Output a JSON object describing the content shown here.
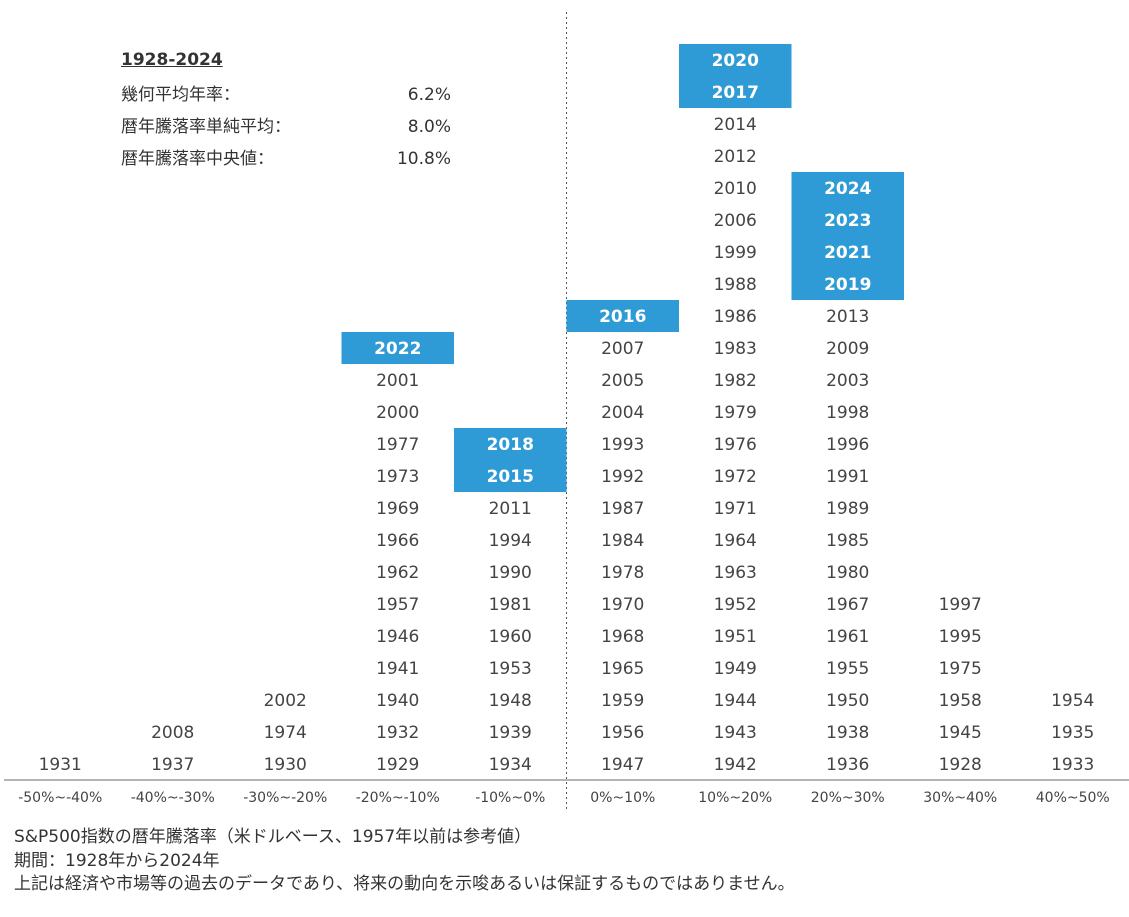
{
  "stats": {
    "period": "1928-2024",
    "rows": [
      {
        "label": "幾何平均年率：",
        "value": "6.2%"
      },
      {
        "label": "暦年騰落率単純平均：",
        "value": "8.0%"
      },
      {
        "label": "暦年騰落率中央値：",
        "value": "10.8%"
      }
    ]
  },
  "chart_data": {
    "type": "histogram",
    "title": "",
    "xlabel": "",
    "ylabel": "",
    "highlight_color": "#2e9bd6",
    "bins": [
      {
        "label": "-50%~-40%",
        "years": [
          "1931"
        ],
        "highlighted": []
      },
      {
        "label": "-40%~-30%",
        "years": [
          "1937",
          "2008"
        ],
        "highlighted": []
      },
      {
        "label": "-30%~-20%",
        "years": [
          "1930",
          "1974",
          "2002"
        ],
        "highlighted": []
      },
      {
        "label": "-20%~-10%",
        "years": [
          "1929",
          "1932",
          "1940",
          "1941",
          "1946",
          "1957",
          "1962",
          "1966",
          "1969",
          "1973",
          "1977",
          "2000",
          "2001",
          "2022"
        ],
        "highlighted": [
          "2022"
        ]
      },
      {
        "label": "-10%~0%",
        "years": [
          "1934",
          "1939",
          "1948",
          "1953",
          "1960",
          "1981",
          "1990",
          "1994",
          "2011",
          "2015",
          "2018"
        ],
        "highlighted": [
          "2015",
          "2018"
        ]
      },
      {
        "label": "0%~10%",
        "years": [
          "1947",
          "1956",
          "1959",
          "1965",
          "1968",
          "1970",
          "1978",
          "1984",
          "1987",
          "1992",
          "1993",
          "2004",
          "2005",
          "2007",
          "2016"
        ],
        "highlighted": [
          "2016"
        ]
      },
      {
        "label": "10%~20%",
        "years": [
          "1942",
          "1943",
          "1944",
          "1949",
          "1951",
          "1952",
          "1963",
          "1964",
          "1971",
          "1972",
          "1976",
          "1979",
          "1982",
          "1983",
          "1986",
          "1988",
          "1999",
          "2006",
          "2010",
          "2012",
          "2014",
          "2017",
          "2020"
        ],
        "highlighted": [
          "2017",
          "2020"
        ]
      },
      {
        "label": "20%~30%",
        "years": [
          "1936",
          "1938",
          "1950",
          "1955",
          "1961",
          "1967",
          "1980",
          "1985",
          "1989",
          "1991",
          "1996",
          "1998",
          "2003",
          "2009",
          "2013",
          "2019",
          "2021",
          "2023",
          "2024"
        ],
        "highlighted": [
          "2019",
          "2021",
          "2023",
          "2024"
        ]
      },
      {
        "label": "30%~40%",
        "years": [
          "1928",
          "1945",
          "1958",
          "1975",
          "1995",
          "1997"
        ],
        "highlighted": []
      },
      {
        "label": "40%~50%",
        "years": [
          "1933",
          "1935",
          "1954"
        ],
        "highlighted": []
      }
    ]
  },
  "notes": {
    "line1": "S&P500指数の暦年騰落率（米ドルベース、1957年以前は参考値）",
    "line2": "期間：1928年から2024年",
    "line3": "上記は経済や市場等の過去のデータであり、将来の動向を示唆あるいは保証するものではありません。"
  }
}
